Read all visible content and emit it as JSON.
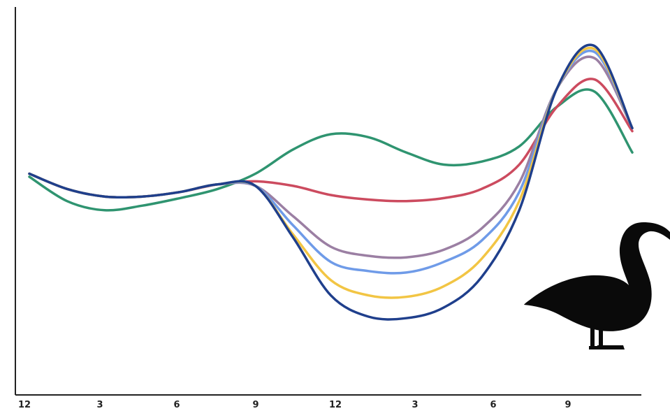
{
  "chart_data": {
    "type": "line",
    "title": "",
    "xlabel": "",
    "ylabel": "",
    "x_tick_labels": [
      "12",
      "3",
      "6",
      "9",
      "12",
      "3",
      "6",
      "9"
    ],
    "x": [
      0,
      1.5,
      3,
      4.5,
      6,
      7.5,
      9,
      10.5,
      12,
      13.5,
      15,
      16.5,
      18,
      19.5,
      21,
      22.5,
      24
    ],
    "xlim": [
      -0.2,
      24.5
    ],
    "ylim": [
      0,
      100
    ],
    "grid": false,
    "legend": "none",
    "series": [
      {
        "color": "#2f9470",
        "values": [
          66,
          58,
          55,
          56.5,
          59,
          62,
          67,
          75,
          80,
          79,
          74,
          70,
          71,
          76,
          89,
          94,
          74
        ]
      },
      {
        "color": "#cc4b5f",
        "values": [
          67,
          62,
          59.5,
          59.5,
          61,
          63.5,
          64.5,
          63,
          60,
          58.5,
          58,
          59,
          62,
          70,
          89,
          98,
          81
        ]
      },
      {
        "color": "#9b7fa3",
        "values": [
          67,
          62,
          59.5,
          59.5,
          61,
          63.5,
          63,
          53,
          43,
          40,
          39.5,
          42,
          49,
          64,
          95,
          105,
          82
        ]
      },
      {
        "color": "#6f9be8",
        "values": [
          67,
          62,
          59.5,
          59.5,
          61,
          63.5,
          63,
          50,
          38,
          35,
          34.5,
          38,
          45,
          61,
          95,
          107,
          82
        ]
      },
      {
        "color": "#f2c544",
        "values": [
          67,
          62,
          59.5,
          59.5,
          61,
          63.5,
          63,
          47,
          32,
          27,
          26.5,
          30,
          39,
          58,
          95,
          108,
          82
        ]
      },
      {
        "color": "#1f3f8c",
        "values": [
          67,
          62,
          59.5,
          59.5,
          61,
          63.5,
          63,
          46,
          27,
          20,
          19.5,
          23,
          33,
          55,
          95,
          109,
          82
        ]
      }
    ]
  }
}
